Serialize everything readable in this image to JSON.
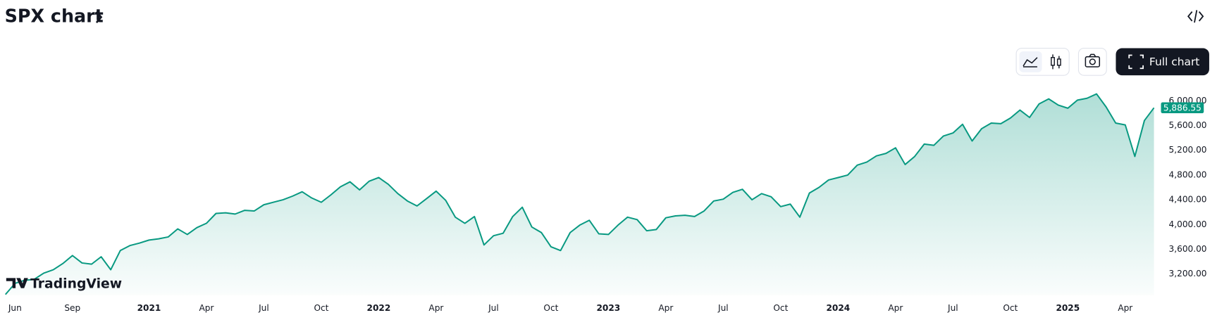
{
  "header": {
    "title": "SPX chart"
  },
  "toolbar": {
    "full_chart": "Full chart"
  },
  "watermark": "TradingView",
  "chart_data": {
    "type": "area",
    "color": "#089981",
    "categories": [
      null,
      "Jun",
      null,
      null,
      null,
      null,
      null,
      "Sep",
      null,
      null,
      null,
      null,
      null,
      null,
      null,
      "2021",
      null,
      null,
      null,
      null,
      null,
      "Apr",
      null,
      null,
      null,
      null,
      null,
      "Jul",
      null,
      null,
      null,
      null,
      null,
      "Oct",
      null,
      null,
      null,
      null,
      null,
      "2022",
      null,
      null,
      null,
      null,
      null,
      "Apr",
      null,
      null,
      null,
      null,
      null,
      "Jul",
      null,
      null,
      null,
      null,
      null,
      "Oct",
      null,
      null,
      null,
      null,
      null,
      "2023",
      null,
      null,
      null,
      null,
      null,
      "Apr",
      null,
      null,
      null,
      null,
      null,
      "Jul",
      null,
      null,
      null,
      null,
      null,
      "Oct",
      null,
      null,
      null,
      null,
      null,
      "2024",
      null,
      null,
      null,
      null,
      null,
      "Apr",
      null,
      null,
      null,
      null,
      null,
      "Jul",
      null,
      null,
      null,
      null,
      null,
      "Oct",
      null,
      null,
      null,
      null,
      null,
      "2025",
      null,
      null,
      null,
      null,
      null,
      "Apr",
      null,
      null,
      null
    ],
    "values": [
      2870,
      3050,
      3100,
      3115,
      3215,
      3270,
      3370,
      3500,
      3380,
      3360,
      3480,
      3270,
      3580,
      3660,
      3700,
      3750,
      3770,
      3800,
      3930,
      3840,
      3950,
      4020,
      4180,
      4190,
      4170,
      4230,
      4220,
      4320,
      4360,
      4400,
      4460,
      4530,
      4430,
      4360,
      4480,
      4610,
      4690,
      4560,
      4700,
      4760,
      4650,
      4500,
      4380,
      4300,
      4420,
      4540,
      4390,
      4120,
      4020,
      4130,
      3670,
      3820,
      3860,
      4130,
      4280,
      3960,
      3870,
      3640,
      3580,
      3870,
      3990,
      4070,
      3850,
      3840,
      3990,
      4120,
      4080,
      3900,
      3920,
      4110,
      4140,
      4150,
      4130,
      4220,
      4380,
      4410,
      4520,
      4570,
      4400,
      4500,
      4450,
      4290,
      4330,
      4120,
      4510,
      4600,
      4720,
      4760,
      4800,
      4960,
      5010,
      5110,
      5150,
      5240,
      4970,
      5100,
      5300,
      5280,
      5430,
      5480,
      5620,
      5350,
      5550,
      5640,
      5630,
      5720,
      5850,
      5730,
      5950,
      6030,
      5930,
      5880,
      6010,
      6040,
      6110,
      5900,
      5640,
      5610,
      5100,
      5680,
      5886.55
    ],
    "ylim": [
      2860,
      6310
    ],
    "yticks": [
      {
        "value": 3200,
        "label": "3,200.00"
      },
      {
        "value": 3600,
        "label": "3,600.00"
      },
      {
        "value": 4000,
        "label": "4,000.00"
      },
      {
        "value": 4400,
        "label": "4,400.00"
      },
      {
        "value": 4800,
        "label": "4,800.00"
      },
      {
        "value": 5200,
        "label": "5,200.00"
      },
      {
        "value": 5600,
        "label": "5,600.00"
      },
      {
        "value": 6000,
        "label": "6,000.00"
      }
    ],
    "last_price": {
      "value": 5886.55,
      "label": "5,886.55"
    }
  }
}
